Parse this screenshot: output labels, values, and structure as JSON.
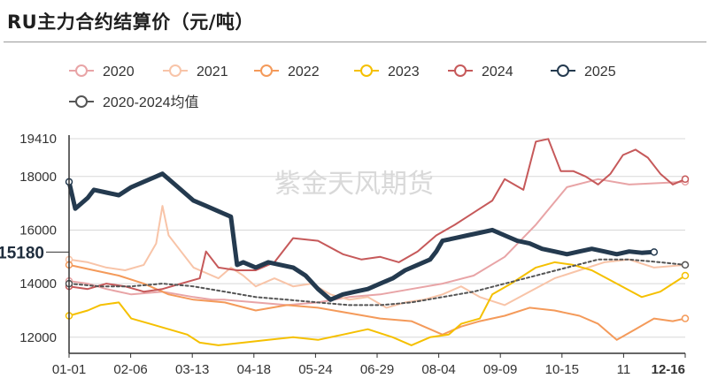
{
  "chart_data": {
    "type": "line",
    "title": "RU主力合约结算价（元/吨）",
    "watermark": "紫金天风期货",
    "ylim": [
      11400,
      19410
    ],
    "yticks": [
      12000,
      14000,
      16000,
      18000,
      19410
    ],
    "last_value_label": "15180",
    "xticks": [
      "01-01",
      "02-06",
      "03-13",
      "04-18",
      "05-24",
      "06-29",
      "08-04",
      "09-09",
      "10-15",
      "11",
      "12-16"
    ],
    "xticks_bold": [
      "12-16"
    ],
    "n_points": 100,
    "legend": [
      "2020",
      "2021",
      "2022",
      "2023",
      "2024",
      "2025",
      "2020-2024均值"
    ],
    "series": [
      {
        "name": "2020",
        "color": "#e8a4a6",
        "width": 2,
        "dash": "",
        "x": [
          0,
          3,
          6,
          10,
          15,
          20,
          23,
          25,
          30,
          35,
          40,
          45,
          50,
          55,
          60,
          65,
          70,
          75,
          80,
          85,
          90,
          99
        ],
        "values": [
          14100,
          14000,
          13800,
          13600,
          13700,
          13500,
          13400,
          13400,
          13300,
          13200,
          13300,
          13500,
          13600,
          13800,
          14000,
          14300,
          15000,
          16200,
          17600,
          17900,
          17700,
          17800
        ]
      },
      {
        "name": "2021",
        "color": "#f8c4a8",
        "width": 2,
        "dash": "",
        "x": [
          0,
          3,
          6,
          9,
          12,
          14,
          15,
          16,
          18,
          20,
          22,
          24,
          26,
          28,
          30,
          33,
          36,
          39,
          42,
          45,
          48,
          51,
          54,
          57,
          60,
          63,
          66,
          70,
          74,
          78,
          82,
          86,
          90,
          94,
          99
        ],
        "values": [
          14900,
          14800,
          14600,
          14500,
          14700,
          15500,
          16900,
          15800,
          15200,
          14600,
          14400,
          14200,
          14600,
          14300,
          13900,
          14200,
          13900,
          14000,
          13600,
          13400,
          13500,
          13100,
          13300,
          13400,
          13600,
          13900,
          13500,
          13200,
          13700,
          14200,
          14500,
          14800,
          14900,
          14600,
          14700
        ]
      },
      {
        "name": "2022",
        "color": "#f49a5a",
        "width": 2,
        "dash": "",
        "x": [
          0,
          4,
          8,
          12,
          16,
          20,
          25,
          30,
          35,
          40,
          45,
          50,
          55,
          58,
          60,
          63,
          66,
          70,
          74,
          78,
          82,
          85,
          88,
          91,
          94,
          97,
          99
        ],
        "values": [
          14700,
          14500,
          14300,
          14000,
          13600,
          13400,
          13300,
          13000,
          13200,
          13100,
          12900,
          12700,
          12600,
          12300,
          12100,
          12400,
          12600,
          12800,
          13100,
          13000,
          12800,
          12500,
          11900,
          12300,
          12700,
          12600,
          12700
        ]
      },
      {
        "name": "2023",
        "color": "#f5c000",
        "width": 2,
        "dash": "",
        "x": [
          0,
          3,
          5,
          8,
          10,
          13,
          16,
          19,
          21,
          24,
          28,
          32,
          36,
          40,
          44,
          48,
          52,
          55,
          58,
          61,
          63,
          66,
          68,
          71,
          73,
          75,
          78,
          81,
          84,
          88,
          92,
          95,
          99
        ],
        "values": [
          12800,
          13000,
          13200,
          13300,
          12700,
          12500,
          12300,
          12100,
          11800,
          11700,
          11800,
          11900,
          12000,
          11900,
          12100,
          12300,
          12000,
          11700,
          12000,
          12100,
          12500,
          12700,
          13600,
          14000,
          14300,
          14600,
          14800,
          14700,
          14500,
          14000,
          13500,
          13700,
          14300
        ]
      },
      {
        "name": "2024",
        "color": "#c6595a",
        "width": 2,
        "dash": "",
        "x": [
          0,
          3,
          6,
          9,
          12,
          15,
          18,
          21,
          22,
          24,
          27,
          30,
          33,
          36,
          40,
          44,
          47,
          50,
          53,
          56,
          59,
          62,
          64,
          66,
          68,
          70,
          73,
          75,
          77,
          79,
          81,
          83,
          85,
          87,
          89,
          91,
          93,
          95,
          97,
          99
        ],
        "values": [
          13900,
          13800,
          14000,
          13900,
          13700,
          13800,
          14000,
          14200,
          15200,
          14600,
          14500,
          14500,
          14800,
          15700,
          15600,
          15100,
          14900,
          15000,
          14800,
          15200,
          15800,
          16200,
          16500,
          16800,
          17100,
          17900,
          17500,
          19300,
          19400,
          18200,
          18200,
          18000,
          17700,
          18100,
          18800,
          19000,
          18700,
          18100,
          17700,
          17900
        ]
      },
      {
        "name": "2025",
        "color": "#243a4f",
        "width": 5,
        "dash": "",
        "x": [
          0,
          1,
          2,
          3,
          4,
          6,
          8,
          10,
          12,
          14,
          15,
          16,
          18,
          20,
          22,
          24,
          26,
          27,
          28,
          30,
          32,
          34,
          36,
          38,
          40,
          42,
          44,
          46,
          48,
          50,
          52,
          54,
          56,
          58,
          59,
          60,
          62,
          64,
          66,
          68,
          70,
          72,
          74,
          76,
          78,
          80,
          82,
          84,
          86,
          88,
          90,
          92,
          94
        ],
        "values": [
          17800,
          16800,
          17000,
          17200,
          17500,
          17400,
          17300,
          17600,
          17800,
          18000,
          18100,
          17900,
          17500,
          17100,
          16900,
          16700,
          16500,
          14700,
          14800,
          14600,
          14800,
          14700,
          14600,
          14300,
          13800,
          13400,
          13600,
          13700,
          13800,
          14000,
          14200,
          14500,
          14700,
          14900,
          15200,
          15600,
          15700,
          15800,
          15900,
          16000,
          15800,
          15600,
          15500,
          15300,
          15200,
          15100,
          15200,
          15300,
          15200,
          15100,
          15200,
          15150,
          15180
        ]
      },
      {
        "name": "2020-2024均值",
        "color": "#555555",
        "width": 2,
        "dash": "3,3",
        "x": [
          0,
          5,
          10,
          15,
          20,
          25,
          30,
          35,
          40,
          45,
          50,
          55,
          60,
          65,
          70,
          75,
          80,
          85,
          90,
          95,
          99
        ],
        "values": [
          14000,
          13900,
          13900,
          14000,
          13900,
          13700,
          13500,
          13400,
          13300,
          13200,
          13200,
          13300,
          13500,
          13700,
          14000,
          14300,
          14600,
          14900,
          14900,
          14800,
          14700
        ]
      }
    ]
  }
}
